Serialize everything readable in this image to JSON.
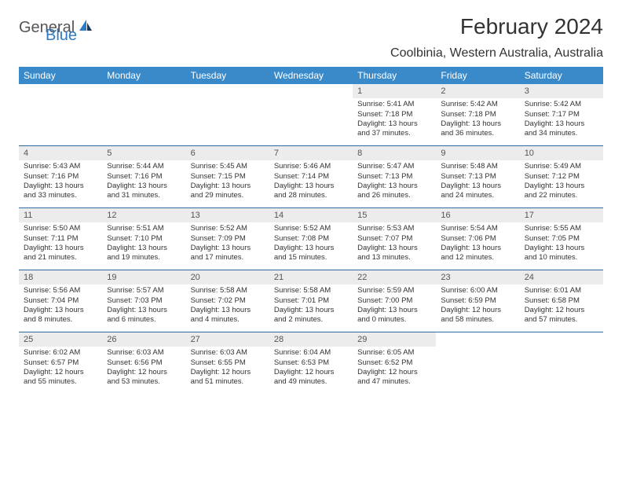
{
  "logo": {
    "part1": "General",
    "part2": "Blue"
  },
  "title": "February 2024",
  "location": "Coolbinia, Western Australia, Australia",
  "colors": {
    "header_bg": "#3a8ac9",
    "header_text": "#ffffff",
    "rule": "#2f6aa0",
    "daynum_bg": "#ececec",
    "logo_accent": "#2f7bc0"
  },
  "weekdays": [
    "Sunday",
    "Monday",
    "Tuesday",
    "Wednesday",
    "Thursday",
    "Friday",
    "Saturday"
  ],
  "rows": [
    [
      null,
      null,
      null,
      null,
      {
        "n": "1",
        "sr": "5:41 AM",
        "ss": "7:18 PM",
        "dl": "13 hours and 37 minutes."
      },
      {
        "n": "2",
        "sr": "5:42 AM",
        "ss": "7:18 PM",
        "dl": "13 hours and 36 minutes."
      },
      {
        "n": "3",
        "sr": "5:42 AM",
        "ss": "7:17 PM",
        "dl": "13 hours and 34 minutes."
      }
    ],
    [
      {
        "n": "4",
        "sr": "5:43 AM",
        "ss": "7:16 PM",
        "dl": "13 hours and 33 minutes."
      },
      {
        "n": "5",
        "sr": "5:44 AM",
        "ss": "7:16 PM",
        "dl": "13 hours and 31 minutes."
      },
      {
        "n": "6",
        "sr": "5:45 AM",
        "ss": "7:15 PM",
        "dl": "13 hours and 29 minutes."
      },
      {
        "n": "7",
        "sr": "5:46 AM",
        "ss": "7:14 PM",
        "dl": "13 hours and 28 minutes."
      },
      {
        "n": "8",
        "sr": "5:47 AM",
        "ss": "7:13 PM",
        "dl": "13 hours and 26 minutes."
      },
      {
        "n": "9",
        "sr": "5:48 AM",
        "ss": "7:13 PM",
        "dl": "13 hours and 24 minutes."
      },
      {
        "n": "10",
        "sr": "5:49 AM",
        "ss": "7:12 PM",
        "dl": "13 hours and 22 minutes."
      }
    ],
    [
      {
        "n": "11",
        "sr": "5:50 AM",
        "ss": "7:11 PM",
        "dl": "13 hours and 21 minutes."
      },
      {
        "n": "12",
        "sr": "5:51 AM",
        "ss": "7:10 PM",
        "dl": "13 hours and 19 minutes."
      },
      {
        "n": "13",
        "sr": "5:52 AM",
        "ss": "7:09 PM",
        "dl": "13 hours and 17 minutes."
      },
      {
        "n": "14",
        "sr": "5:52 AM",
        "ss": "7:08 PM",
        "dl": "13 hours and 15 minutes."
      },
      {
        "n": "15",
        "sr": "5:53 AM",
        "ss": "7:07 PM",
        "dl": "13 hours and 13 minutes."
      },
      {
        "n": "16",
        "sr": "5:54 AM",
        "ss": "7:06 PM",
        "dl": "13 hours and 12 minutes."
      },
      {
        "n": "17",
        "sr": "5:55 AM",
        "ss": "7:05 PM",
        "dl": "13 hours and 10 minutes."
      }
    ],
    [
      {
        "n": "18",
        "sr": "5:56 AM",
        "ss": "7:04 PM",
        "dl": "13 hours and 8 minutes."
      },
      {
        "n": "19",
        "sr": "5:57 AM",
        "ss": "7:03 PM",
        "dl": "13 hours and 6 minutes."
      },
      {
        "n": "20",
        "sr": "5:58 AM",
        "ss": "7:02 PM",
        "dl": "13 hours and 4 minutes."
      },
      {
        "n": "21",
        "sr": "5:58 AM",
        "ss": "7:01 PM",
        "dl": "13 hours and 2 minutes."
      },
      {
        "n": "22",
        "sr": "5:59 AM",
        "ss": "7:00 PM",
        "dl": "13 hours and 0 minutes."
      },
      {
        "n": "23",
        "sr": "6:00 AM",
        "ss": "6:59 PM",
        "dl": "12 hours and 58 minutes."
      },
      {
        "n": "24",
        "sr": "6:01 AM",
        "ss": "6:58 PM",
        "dl": "12 hours and 57 minutes."
      }
    ],
    [
      {
        "n": "25",
        "sr": "6:02 AM",
        "ss": "6:57 PM",
        "dl": "12 hours and 55 minutes."
      },
      {
        "n": "26",
        "sr": "6:03 AM",
        "ss": "6:56 PM",
        "dl": "12 hours and 53 minutes."
      },
      {
        "n": "27",
        "sr": "6:03 AM",
        "ss": "6:55 PM",
        "dl": "12 hours and 51 minutes."
      },
      {
        "n": "28",
        "sr": "6:04 AM",
        "ss": "6:53 PM",
        "dl": "12 hours and 49 minutes."
      },
      {
        "n": "29",
        "sr": "6:05 AM",
        "ss": "6:52 PM",
        "dl": "12 hours and 47 minutes."
      },
      null,
      null
    ]
  ],
  "labels": {
    "sunrise": "Sunrise: ",
    "sunset": "Sunset: ",
    "daylight": "Daylight: "
  }
}
